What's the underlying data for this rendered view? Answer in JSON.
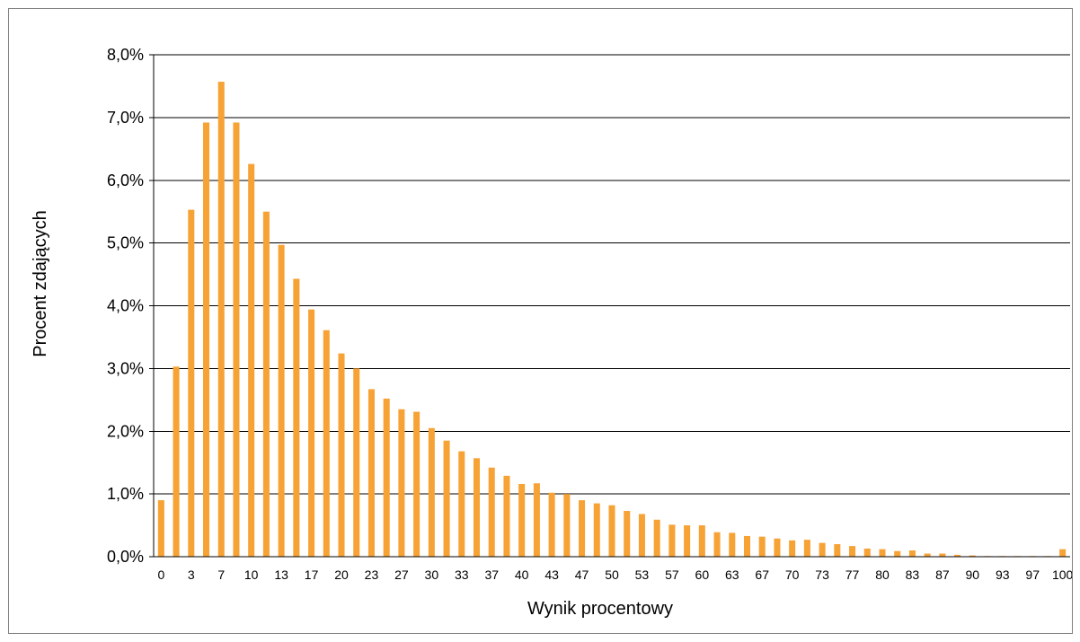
{
  "chart_data": {
    "type": "bar",
    "title": "",
    "xlabel": "Wynik procentowy",
    "ylabel": "Procent zdających",
    "ylim": [
      0,
      8
    ],
    "y_ticks": [
      "0,0%",
      "1,0%",
      "2,0%",
      "3,0%",
      "4,0%",
      "5,0%",
      "6,0%",
      "7,0%",
      "8,0%"
    ],
    "grid": true,
    "legend": "none",
    "bar_color": "#F7A235",
    "categories": [
      0,
      2,
      3,
      5,
      7,
      8,
      10,
      12,
      13,
      15,
      17,
      18,
      20,
      22,
      23,
      25,
      27,
      28,
      30,
      32,
      33,
      35,
      37,
      38,
      40,
      42,
      43,
      45,
      47,
      48,
      50,
      52,
      53,
      55,
      57,
      58,
      60,
      62,
      63,
      65,
      67,
      68,
      70,
      72,
      73,
      75,
      77,
      78,
      80,
      82,
      83,
      85,
      87,
      88,
      90,
      92,
      93,
      95,
      97,
      98,
      100
    ],
    "x_tick_labels": [
      "0",
      "3",
      "7",
      "10",
      "13",
      "17",
      "20",
      "23",
      "27",
      "30",
      "33",
      "37",
      "40",
      "43",
      "47",
      "50",
      "53",
      "57",
      "60",
      "63",
      "67",
      "70",
      "73",
      "77",
      "80",
      "83",
      "87",
      "90",
      "93",
      "97",
      "100"
    ],
    "values": [
      0.9,
      3.03,
      5.53,
      6.92,
      7.57,
      6.92,
      6.26,
      5.5,
      4.97,
      4.43,
      3.94,
      3.61,
      3.24,
      3.0,
      2.67,
      2.52,
      2.35,
      2.31,
      2.05,
      1.85,
      1.68,
      1.57,
      1.42,
      1.29,
      1.16,
      1.17,
      1.02,
      1.0,
      0.9,
      0.85,
      0.82,
      0.73,
      0.68,
      0.59,
      0.51,
      0.5,
      0.5,
      0.39,
      0.38,
      0.33,
      0.32,
      0.29,
      0.26,
      0.27,
      0.22,
      0.2,
      0.17,
      0.13,
      0.12,
      0.09,
      0.1,
      0.05,
      0.05,
      0.03,
      0.02,
      0.01,
      0.01,
      0.01,
      0.01,
      0.01,
      0.12
    ]
  }
}
